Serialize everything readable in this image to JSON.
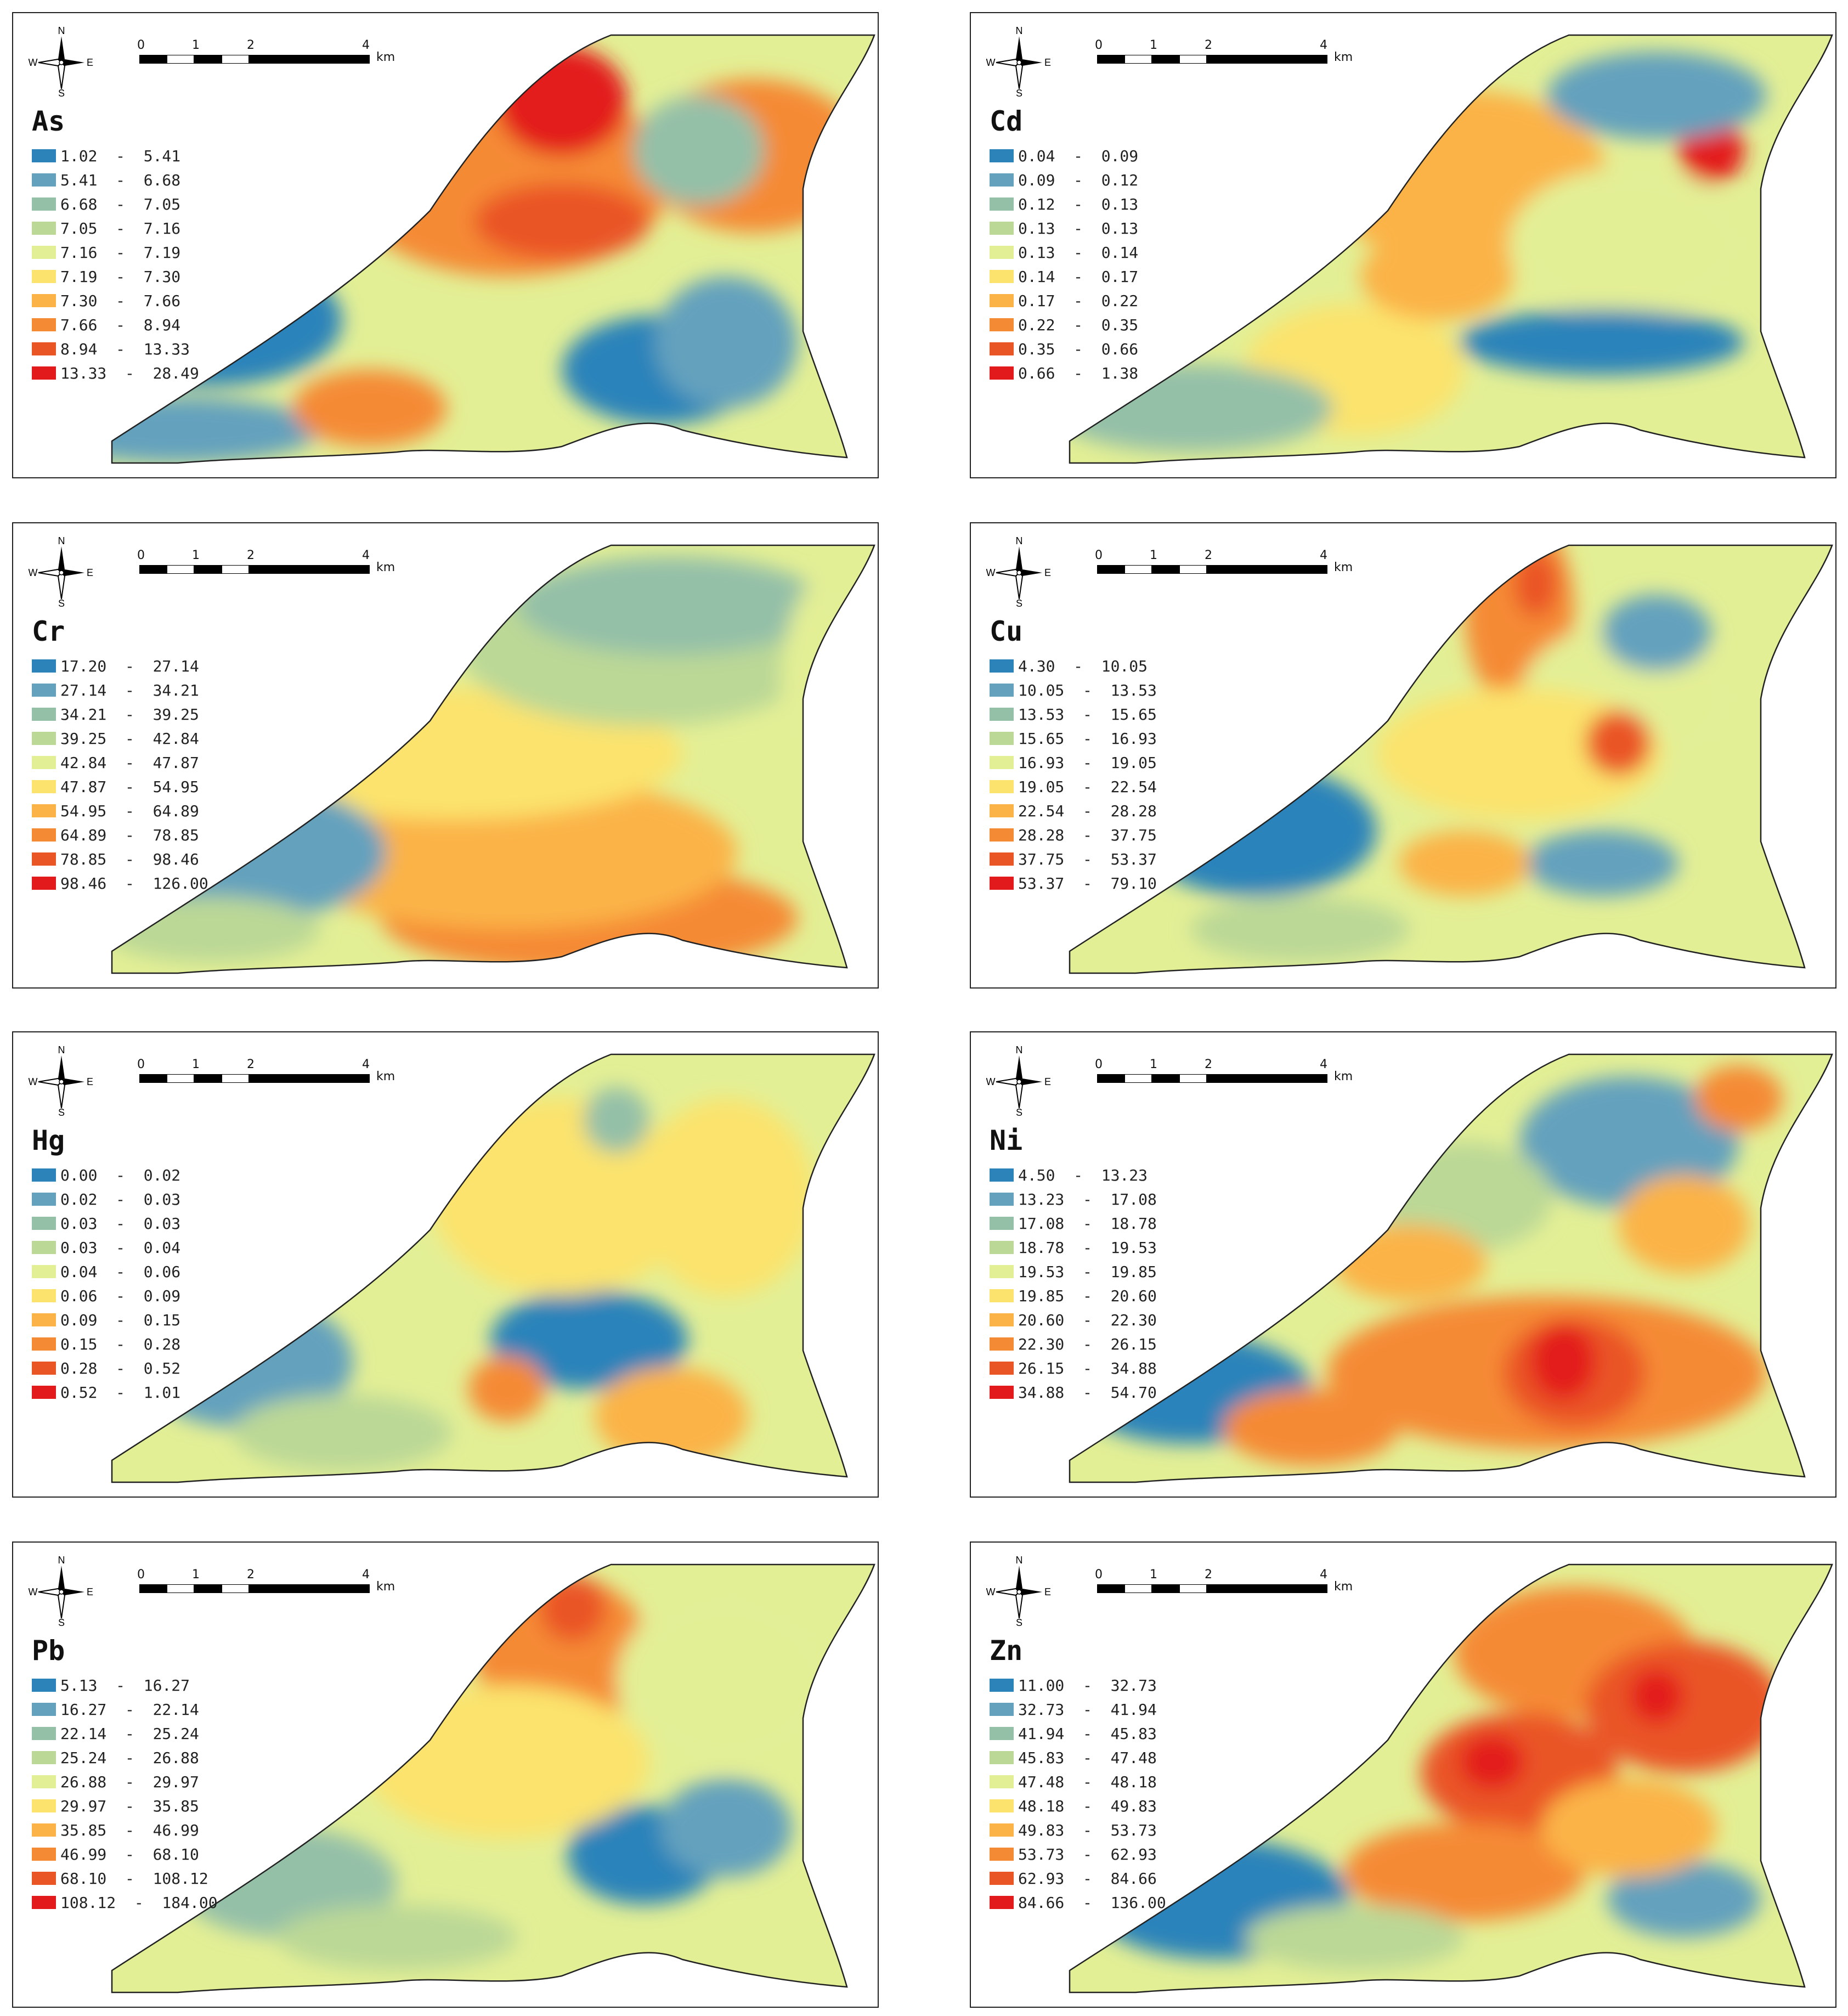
{
  "colors": [
    "#2b83ba",
    "#64a1bd",
    "#94c0a8",
    "#bbd896",
    "#e3ef95",
    "#fbe36d",
    "#fbb347",
    "#f58a35",
    "#ea5526",
    "#e31a1c"
  ],
  "scale": {
    "labels": [
      "0",
      "1",
      "2",
      "4"
    ],
    "unit": "km"
  },
  "compass": {
    "n": "N",
    "s": "S",
    "e": "E",
    "w": "W"
  },
  "panels": [
    {
      "element": "As",
      "legend": [
        "1.02  -  5.41",
        "5.41  -  6.68",
        "6.68  -  7.05",
        "7.05  -  7.16",
        "7.16  -  7.19",
        "7.19  -  7.30",
        "7.30  -  7.66",
        "7.66  -  8.94",
        "8.94  -  13.33",
        "13.33  -  28.49"
      ]
    },
    {
      "element": "Cd",
      "legend": [
        "0.04  -  0.09",
        "0.09  -  0.12",
        "0.12  -  0.13",
        "0.13  -  0.13",
        "0.13  -  0.14",
        "0.14  -  0.17",
        "0.17  -  0.22",
        "0.22  -  0.35",
        "0.35  -  0.66",
        "0.66  -  1.38"
      ]
    },
    {
      "element": "Cr",
      "legend": [
        "17.20  -  27.14",
        "27.14  -  34.21",
        "34.21  -  39.25",
        "39.25  -  42.84",
        "42.84  -  47.87",
        "47.87  -  54.95",
        "54.95  -  64.89",
        "64.89  -  78.85",
        "78.85  -  98.46",
        "98.46  -  126.00"
      ]
    },
    {
      "element": "Cu",
      "legend": [
        "4.30  -  10.05",
        "10.05  -  13.53",
        "13.53  -  15.65",
        "15.65  -  16.93",
        "16.93  -  19.05",
        "19.05  -  22.54",
        "22.54  -  28.28",
        "28.28  -  37.75",
        "37.75  -  53.37",
        "53.37  -  79.10"
      ]
    },
    {
      "element": "Hg",
      "legend": [
        "0.00  -  0.02",
        "0.02  -  0.03",
        "0.03  -  0.03",
        "0.03  -  0.04",
        "0.04  -  0.06",
        "0.06  -  0.09",
        "0.09  -  0.15",
        "0.15  -  0.28",
        "0.28  -  0.52",
        "0.52  -  1.01"
      ]
    },
    {
      "element": "Ni",
      "legend": [
        "4.50  -  13.23",
        "13.23  -  17.08",
        "17.08  -  18.78",
        "18.78  -  19.53",
        "19.53  -  19.85",
        "19.85  -  20.60",
        "20.60  -  22.30",
        "22.30  -  26.15",
        "26.15  -  34.88",
        "34.88  -  54.70"
      ]
    },
    {
      "element": "Pb",
      "legend": [
        "5.13  -  16.27",
        "16.27  -  22.14",
        "22.14  -  25.24",
        "25.24  -  26.88",
        "26.88  -  29.97",
        "29.97  -  35.85",
        "35.85  -  46.99",
        "46.99  -  68.10",
        "68.10  -  108.12",
        "108.12  -  184.00"
      ]
    },
    {
      "element": "Zn",
      "legend": [
        "11.00  -  32.73",
        "32.73  -  41.94",
        "41.94  -  45.83",
        "45.83  -  47.48",
        "47.48  -  48.18",
        "48.18  -  49.83",
        "49.83  -  53.73",
        "53.73  -  62.93",
        "62.93  -  84.66",
        "84.66  -  136.00"
      ]
    }
  ]
}
